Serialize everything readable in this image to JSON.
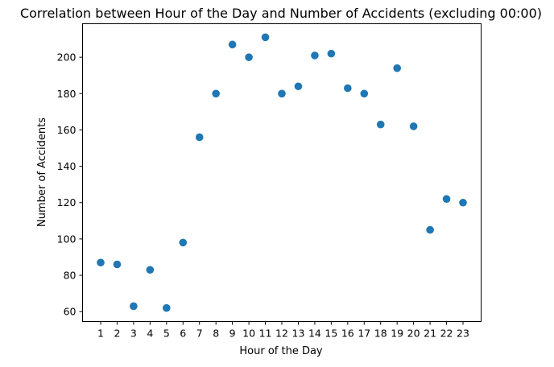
{
  "chart_data": {
    "type": "scatter",
    "title": "Correlation between Hour of the Day and Number of Accidents (excluding 00:00)",
    "xlabel": "Hour of the Day",
    "ylabel": "Number of Accidents",
    "x": [
      1,
      2,
      3,
      4,
      5,
      6,
      7,
      8,
      9,
      10,
      11,
      12,
      13,
      14,
      15,
      16,
      17,
      18,
      19,
      20,
      21,
      22,
      23
    ],
    "y": [
      87,
      86,
      63,
      83,
      62,
      98,
      156,
      180,
      207,
      200,
      211,
      180,
      184,
      201,
      202,
      183,
      180,
      163,
      194,
      162,
      105,
      122,
      120
    ],
    "xticks": [
      1,
      2,
      3,
      4,
      5,
      6,
      7,
      8,
      9,
      10,
      11,
      12,
      13,
      14,
      15,
      16,
      17,
      18,
      19,
      20,
      21,
      22,
      23
    ],
    "yticks": [
      60,
      80,
      100,
      120,
      140,
      160,
      180,
      200
    ],
    "xlim": [
      -0.1,
      24.1
    ],
    "ylim": [
      54.55,
      218.45
    ],
    "grid": false,
    "marker_color": "#1f77b4"
  }
}
